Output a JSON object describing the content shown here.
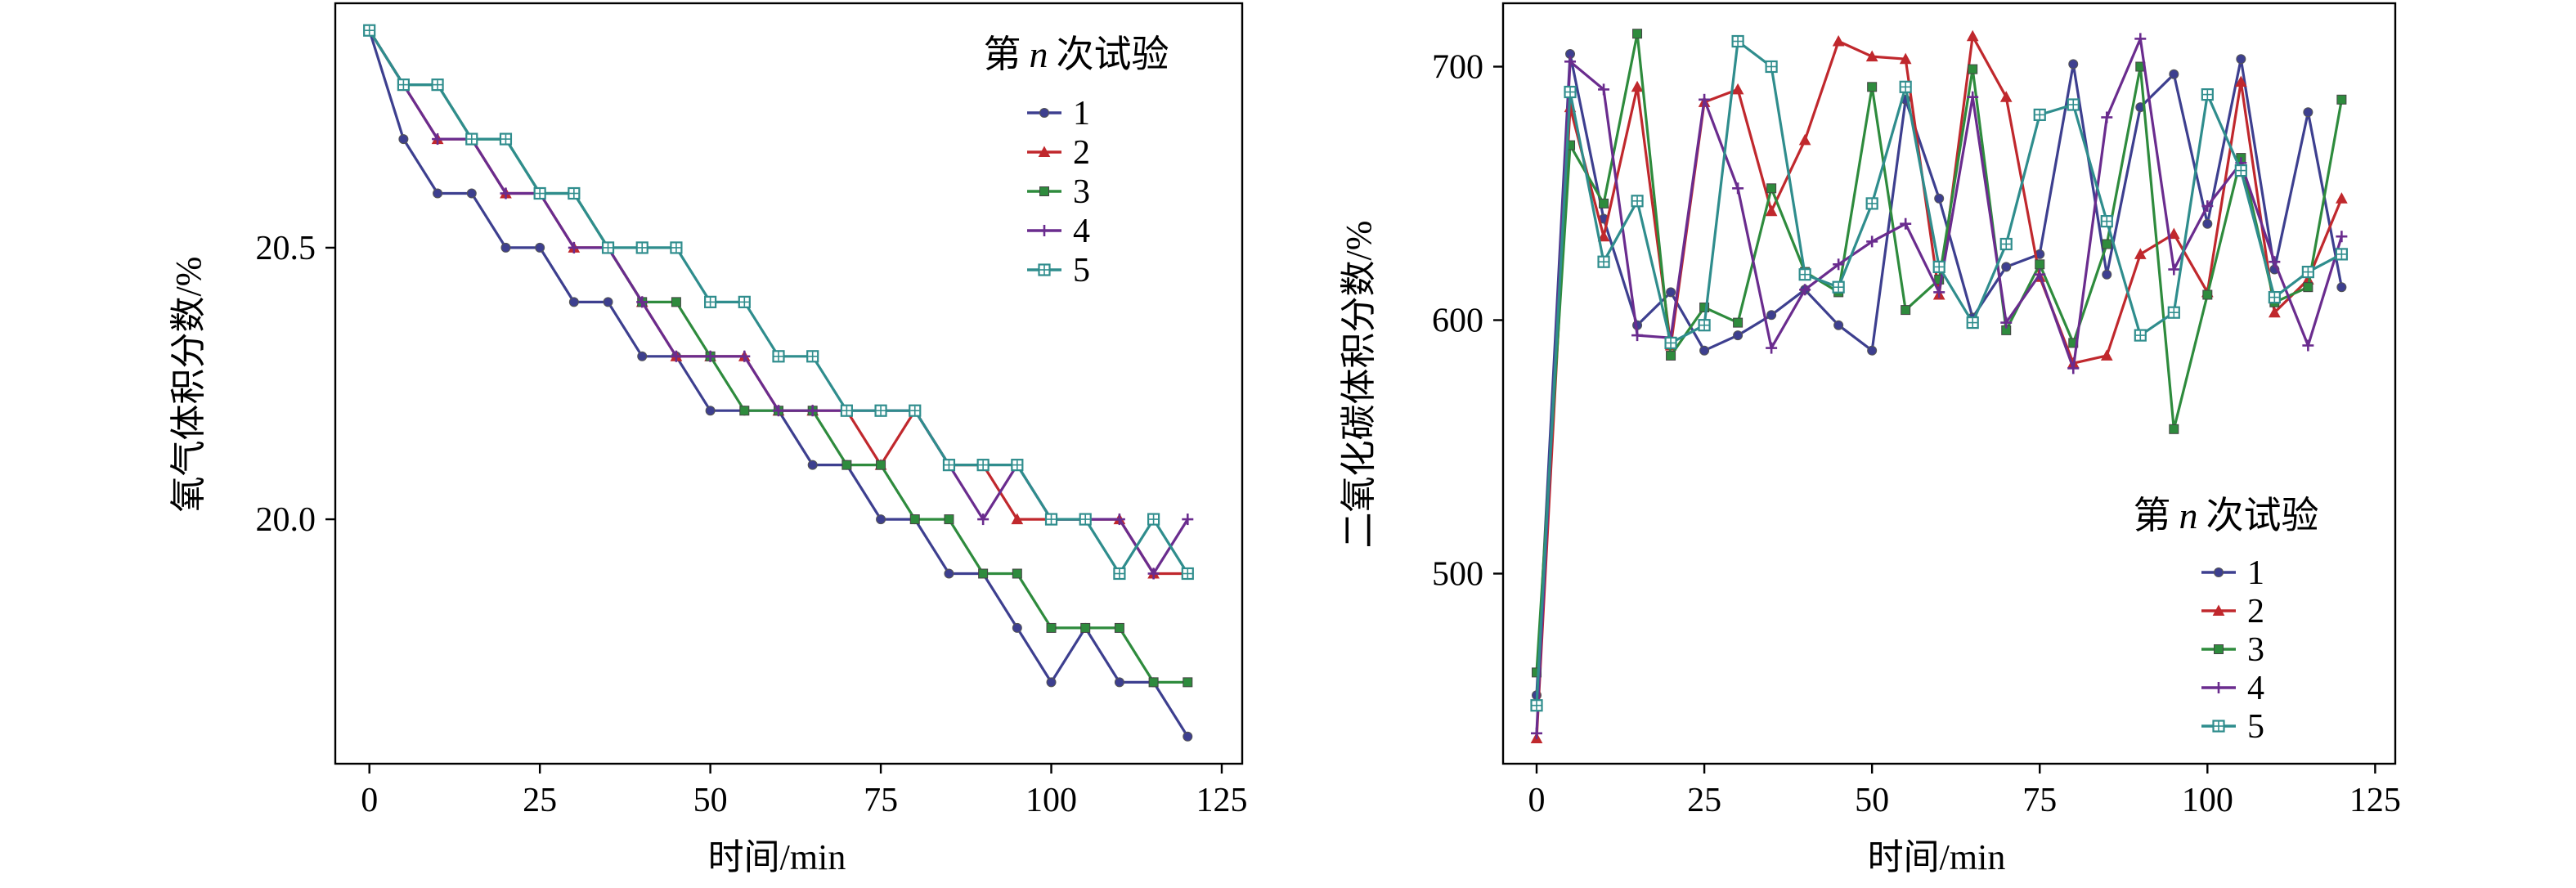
{
  "chart_data": [
    {
      "type": "line",
      "xlabel": "时间/min",
      "ylabel": "氧气体积分数/%",
      "xlim": [
        -5,
        128
      ],
      "ylim": [
        19.55,
        20.95
      ],
      "xticks": [
        0,
        25,
        50,
        75,
        100,
        125
      ],
      "xtick_labels": [
        "0",
        "25",
        "50",
        "75",
        "100",
        "125"
      ],
      "yticks": [
        20.0,
        20.5
      ],
      "ytick_labels": [
        "20.0",
        "20.5"
      ],
      "legend": {
        "title_prefix": "第",
        "title_var": "n",
        "title_suffix": "次试验",
        "position": "top-right"
      },
      "x": [
        0,
        5,
        10,
        15,
        20,
        25,
        30,
        35,
        40,
        45,
        50,
        55,
        60,
        65,
        70,
        75,
        80,
        85,
        90,
        95,
        100,
        105,
        110,
        115,
        120
      ],
      "series": [
        {
          "name": "1",
          "color": "#3d3f8f",
          "marker": "circle",
          "values": [
            20.9,
            20.7,
            20.6,
            20.6,
            20.5,
            20.5,
            20.4,
            20.4,
            20.3,
            20.3,
            20.2,
            20.2,
            20.2,
            20.1,
            20.1,
            20.0,
            20.0,
            19.9,
            19.9,
            19.8,
            19.7,
            19.8,
            19.7,
            19.7,
            19.6
          ]
        },
        {
          "name": "2",
          "color": "#c0282d",
          "marker": "triangle",
          "values": [
            20.9,
            20.8,
            20.7,
            20.7,
            20.6,
            20.6,
            20.5,
            20.5,
            20.4,
            20.3,
            20.3,
            20.3,
            20.2,
            20.2,
            20.2,
            20.1,
            20.2,
            20.1,
            20.1,
            20.0,
            20.0,
            20.0,
            20.0,
            19.9,
            19.9
          ]
        },
        {
          "name": "3",
          "color": "#2e8b3d",
          "marker": "square",
          "values": [
            20.9,
            20.8,
            20.8,
            20.7,
            20.7,
            20.6,
            20.6,
            20.5,
            20.4,
            20.4,
            20.3,
            20.2,
            20.2,
            20.2,
            20.1,
            20.1,
            20.0,
            20.0,
            19.9,
            19.9,
            19.8,
            19.8,
            19.8,
            19.7,
            19.7
          ]
        },
        {
          "name": "4",
          "color": "#6a2c8e",
          "marker": "plus",
          "values": [
            20.9,
            20.8,
            20.7,
            20.7,
            20.6,
            20.6,
            20.5,
            20.5,
            20.4,
            20.3,
            20.3,
            20.3,
            20.2,
            20.2,
            20.2,
            20.2,
            20.2,
            20.1,
            20.0,
            20.1,
            20.0,
            20.0,
            20.0,
            19.9,
            20.0
          ]
        },
        {
          "name": "5",
          "color": "#2f8d8d",
          "marker": "boxed",
          "values": [
            20.9,
            20.8,
            20.8,
            20.7,
            20.7,
            20.6,
            20.6,
            20.5,
            20.5,
            20.5,
            20.4,
            20.4,
            20.3,
            20.3,
            20.2,
            20.2,
            20.2,
            20.1,
            20.1,
            20.1,
            20.0,
            20.0,
            19.9,
            20.0,
            19.9
          ]
        }
      ]
    },
    {
      "type": "line",
      "xlabel": "时间/min",
      "ylabel": "二氧化碳体积分数/%",
      "xlim": [
        -5,
        128
      ],
      "ylim": [
        425,
        725
      ],
      "xticks": [
        0,
        25,
        50,
        75,
        100,
        125
      ],
      "xtick_labels": [
        "0",
        "25",
        "50",
        "75",
        "100",
        "125"
      ],
      "yticks": [
        500,
        600,
        700
      ],
      "ytick_labels": [
        "500",
        "600",
        "700"
      ],
      "legend": {
        "title_prefix": "第",
        "title_var": "n",
        "title_suffix": "次试验",
        "position": "bottom-right"
      },
      "x": [
        0,
        5,
        10,
        15,
        20,
        25,
        30,
        35,
        40,
        45,
        50,
        55,
        60,
        65,
        70,
        75,
        80,
        85,
        90,
        95,
        100,
        105,
        110,
        115,
        120
      ],
      "series": [
        {
          "name": "1",
          "color": "#3d3f8f",
          "marker": "circle",
          "values": [
            452,
            705,
            640,
            598,
            611,
            588,
            594,
            602,
            612,
            598,
            588,
            687,
            648,
            601,
            621,
            626,
            701,
            618,
            684,
            697,
            638,
            703,
            620,
            682,
            613
          ]
        },
        {
          "name": "2",
          "color": "#c0282d",
          "marker": "triangle",
          "values": [
            435,
            684,
            633,
            692,
            590,
            686,
            691,
            643,
            671,
            710,
            704,
            703,
            610,
            712,
            688,
            617,
            583,
            586,
            626,
            634,
            611,
            694,
            603,
            616,
            648
          ]
        },
        {
          "name": "3",
          "color": "#2e8b3d",
          "marker": "square",
          "values": [
            461,
            669,
            646,
            713,
            586,
            605,
            599,
            652,
            619,
            611,
            692,
            604,
            616,
            699,
            596,
            622,
            591,
            630,
            700,
            557,
            610,
            664,
            607,
            613,
            687
          ]
        },
        {
          "name": "4",
          "color": "#6a2c8e",
          "marker": "plus",
          "values": [
            437,
            702,
            691,
            594,
            593,
            687,
            652,
            589,
            612,
            622,
            631,
            638,
            611,
            688,
            599,
            618,
            581,
            680,
            711,
            620,
            645,
            662,
            623,
            590,
            633
          ]
        },
        {
          "name": "5",
          "color": "#2f8d8d",
          "marker": "boxed",
          "values": [
            448,
            690,
            623,
            647,
            591,
            598,
            710,
            700,
            618,
            613,
            646,
            692,
            621,
            599,
            630,
            681,
            685,
            639,
            594,
            603,
            689,
            659,
            609,
            619,
            626
          ]
        }
      ]
    }
  ]
}
